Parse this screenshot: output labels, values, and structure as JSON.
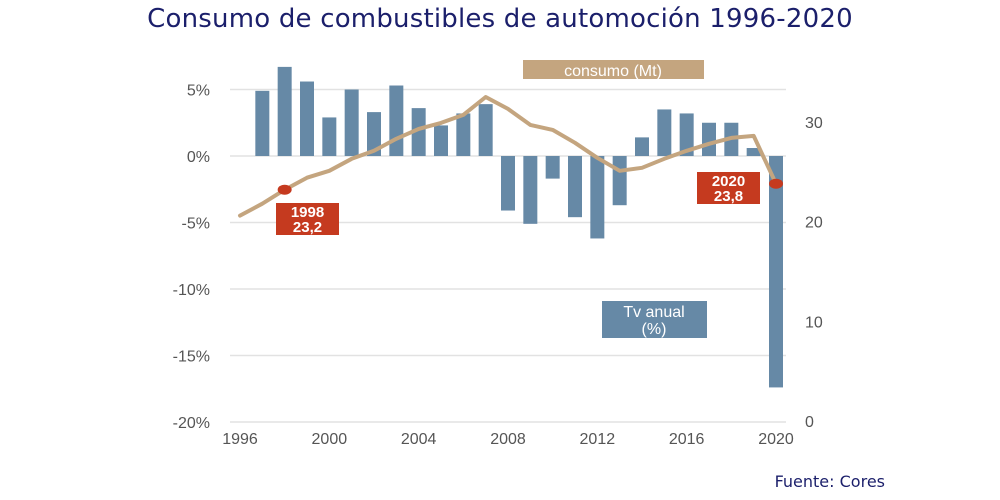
{
  "title": "Consumo de combustibles de automoción 1996-2020",
  "source": "Fuente: Cores",
  "colors": {
    "bar": "#6689a6",
    "line": "#c4a57f",
    "annotation": "#c53a1f",
    "title": "#1b1f6b",
    "grid": "#e2e2e2",
    "tick": "#555555"
  },
  "chart_data": {
    "type": "bar+line",
    "title": "Consumo de combustibles de automoción 1996-2020",
    "x_ticks": [
      "1996",
      "2000",
      "2004",
      "2008",
      "2012",
      "2016",
      "2020"
    ],
    "x_range": [
      1996,
      2020
    ],
    "left_axis": {
      "label": "Tv anual (%)",
      "ylim": [
        -20,
        5
      ],
      "ticks": [
        5,
        0,
        -5,
        -10,
        -15,
        -20
      ],
      "tick_labels": [
        "5%",
        "0%",
        "-5%",
        "-10%",
        "-15%",
        "-20%"
      ]
    },
    "right_axis": {
      "label": "consumo (Mt)",
      "ylim": [
        0,
        35
      ],
      "ticks": [
        30,
        20,
        10,
        0
      ],
      "tick_labels": [
        "30",
        "20",
        "10",
        "0"
      ]
    },
    "grid": true,
    "series": [
      {
        "name": "Tv anual (%)",
        "type": "bar",
        "axis": "left",
        "x": [
          1997,
          1998,
          1999,
          2000,
          2001,
          2002,
          2003,
          2004,
          2005,
          2006,
          2007,
          2008,
          2009,
          2010,
          2011,
          2012,
          2013,
          2014,
          2015,
          2016,
          2017,
          2018,
          2019,
          2020
        ],
        "values": [
          4.9,
          6.7,
          5.6,
          2.9,
          5.0,
          3.3,
          5.3,
          3.6,
          2.3,
          3.2,
          3.9,
          -4.1,
          -5.1,
          -1.7,
          -4.6,
          -6.2,
          -3.7,
          1.4,
          3.5,
          3.2,
          2.5,
          2.5,
          0.6,
          -17.4
        ]
      },
      {
        "name": "consumo (Mt)",
        "type": "line",
        "axis": "right",
        "x": [
          1996,
          1997,
          1998,
          1999,
          2000,
          2001,
          2002,
          2003,
          2004,
          2005,
          2006,
          2007,
          2008,
          2009,
          2010,
          2011,
          2012,
          2013,
          2014,
          2015,
          2016,
          2017,
          2018,
          2019,
          2020
        ],
        "values": [
          20.6,
          21.8,
          23.2,
          24.4,
          25.1,
          26.3,
          27.1,
          28.3,
          29.3,
          29.9,
          30.7,
          32.5,
          31.3,
          29.7,
          29.2,
          27.9,
          26.4,
          25.1,
          25.4,
          26.3,
          27.1,
          27.8,
          28.4,
          28.6,
          23.8
        ]
      }
    ],
    "legend": [
      {
        "label": "consumo (Mt)",
        "placement": "top-right"
      },
      {
        "label_line1": "Tv anual",
        "label_line2": "(%)",
        "placement": "bottom-right"
      }
    ],
    "annotations": [
      {
        "year": 1998,
        "line1": "1998",
        "line2": "23,2",
        "value": 23.2
      },
      {
        "year": 2020,
        "line1": "2020",
        "line2": "23,8",
        "value": 23.8
      }
    ]
  }
}
